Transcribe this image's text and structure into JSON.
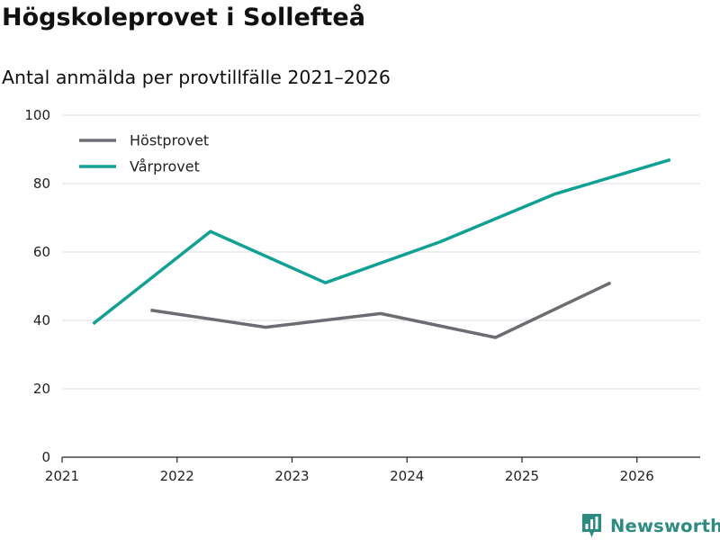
{
  "header": {
    "title": "Högskoleprovet i Sollefteå",
    "subtitle": "Antal anmälda per provtillfälle 2021–2026"
  },
  "brand": {
    "name": "Newsworthy",
    "icon": "newsworthy-logo-icon",
    "color": "#2e8b81"
  },
  "chart_data": {
    "type": "line",
    "title": "Högskoleprovet i Sollefteå",
    "subtitle": "Antal anmälda per provtillfälle 2021–2026",
    "xlabel": "",
    "ylabel": "",
    "xlim": [
      2021,
      2026.55
    ],
    "ylim": [
      0,
      100
    ],
    "x_ticks": [
      2021,
      2022,
      2023,
      2024,
      2025,
      2026
    ],
    "y_ticks": [
      0,
      20,
      40,
      60,
      80,
      100
    ],
    "grid": "horizontal",
    "legend_position": "top-left",
    "series": [
      {
        "name": "Höstprovet",
        "color": "#6e6c73",
        "x": [
          2021.77,
          2022.77,
          2023.77,
          2024.77,
          2025.77
        ],
        "y": [
          43,
          38,
          42,
          35,
          51
        ]
      },
      {
        "name": "Vårprovet",
        "color": "#10a094",
        "x": [
          2021.27,
          2022.29,
          2023.29,
          2024.29,
          2025.29,
          2026.29
        ],
        "y": [
          39,
          66,
          51,
          63,
          77,
          87
        ]
      }
    ]
  }
}
